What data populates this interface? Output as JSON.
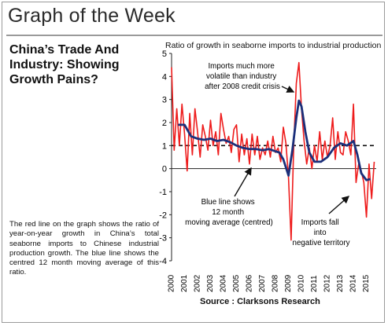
{
  "header": {
    "title": "Graph of the Week"
  },
  "headline": "China’s Trade And Industry: Showing Growth Pains?",
  "description": "The red line on the graph shows the ratio of year-on-year growth in China’s total seaborne imports to Chinese industrial production growth. The blue line shows the centred 12 month moving average of this ratio.",
  "source": "Source : Clarksons Research",
  "chart_data": {
    "type": "line",
    "title": "Ratio of growth in seaborne imports to industrial production",
    "xlabel": "",
    "ylabel": "",
    "ylim": [
      -4,
      5
    ],
    "yticks": [
      -4,
      -3,
      -2,
      -1,
      0,
      1,
      2,
      3,
      4,
      5
    ],
    "xticks": [
      "2000",
      "2001",
      "2002",
      "2003",
      "2004",
      "2005",
      "2006",
      "2007",
      "2008",
      "2009",
      "2010",
      "2011",
      "2012",
      "2013",
      "2014",
      "2015"
    ],
    "reference_line": {
      "y": 1,
      "style": "dashed"
    },
    "colors": {
      "monthly": "#ee1c1c",
      "moving_average": "#1b2f7a"
    },
    "series": [
      {
        "key": "monthly",
        "x": [
          2000.0,
          2000.2,
          2000.4,
          2000.6,
          2000.8,
          2001.0,
          2001.2,
          2001.4,
          2001.6,
          2001.8,
          2002.0,
          2002.2,
          2002.4,
          2002.6,
          2002.8,
          2003.0,
          2003.2,
          2003.4,
          2003.6,
          2003.8,
          2004.0,
          2004.2,
          2004.4,
          2004.6,
          2004.8,
          2005.0,
          2005.2,
          2005.4,
          2005.6,
          2005.8,
          2006.0,
          2006.2,
          2006.4,
          2006.6,
          2006.8,
          2007.0,
          2007.2,
          2007.4,
          2007.6,
          2007.8,
          2008.0,
          2008.2,
          2008.4,
          2008.6,
          2008.8,
          2009.0,
          2009.2,
          2009.4,
          2009.6,
          2009.8,
          2010.0,
          2010.2,
          2010.4,
          2010.6,
          2010.8,
          2011.0,
          2011.2,
          2011.4,
          2011.6,
          2011.8,
          2012.0,
          2012.2,
          2012.4,
          2012.6,
          2012.8,
          2013.0,
          2013.2,
          2013.4,
          2013.6,
          2013.8,
          2014.0,
          2014.2,
          2014.4,
          2014.6,
          2014.8,
          2015.0,
          2015.2,
          2015.4,
          2015.6
        ],
        "y": [
          4.4,
          0.8,
          2.6,
          1.0,
          2.8,
          1.5,
          -0.1,
          2.4,
          0.6,
          2.6,
          1.6,
          0.5,
          1.9,
          1.4,
          0.8,
          2.1,
          1.0,
          1.6,
          0.6,
          2.4,
          1.7,
          1.1,
          1.4,
          0.7,
          1.7,
          1.9,
          0.3,
          1.5,
          0.6,
          1.3,
          0.2,
          1.5,
          0.6,
          1.4,
          0.4,
          0.9,
          0.6,
          1.2,
          0.5,
          1.4,
          0.7,
          0.9,
          0.3,
          1.8,
          1.1,
          -0.4,
          -3.1,
          1.0,
          3.7,
          4.6,
          2.6,
          1.2,
          0.2,
          0.9,
          0.0,
          1.0,
          0.3,
          1.6,
          0.4,
          1.2,
          0.5,
          1.0,
          2.2,
          0.4,
          1.6,
          0.7,
          0.6,
          1.6,
          1.2,
          0.6,
          2.8,
          -0.6,
          0.2,
          -0.1,
          -0.6,
          -2.1,
          0.2,
          -1.3,
          0.3
        ]
      },
      {
        "key": "moving_average",
        "x": [
          2000.5,
          2001.0,
          2001.5,
          2002.0,
          2002.5,
          2003.0,
          2003.5,
          2004.0,
          2004.5,
          2005.0,
          2005.5,
          2006.0,
          2006.5,
          2007.0,
          2007.5,
          2008.0,
          2008.3,
          2008.6,
          2009.0,
          2009.3,
          2009.6,
          2009.8,
          2010.0,
          2010.3,
          2010.6,
          2011.0,
          2011.5,
          2012.0,
          2012.5,
          2013.0,
          2013.5,
          2014.0,
          2014.3,
          2014.6,
          2015.0,
          2015.3
        ],
        "y": [
          1.9,
          1.9,
          1.4,
          1.3,
          1.25,
          1.3,
          1.2,
          1.25,
          1.15,
          1.0,
          0.9,
          0.85,
          0.85,
          0.8,
          0.85,
          0.75,
          0.7,
          0.4,
          -0.3,
          0.8,
          2.2,
          2.95,
          2.7,
          1.6,
          0.7,
          0.3,
          0.3,
          0.5,
          0.9,
          1.1,
          1.0,
          1.2,
          0.6,
          -0.2,
          -0.5,
          -0.45
        ]
      }
    ],
    "annotations": [
      {
        "key": "crisis",
        "text": "Imports much more volatile than industry after 2008 credit crisis"
      },
      {
        "key": "blue",
        "text": "Blue line shows 12 month moving average (centred)"
      },
      {
        "key": "fall",
        "text": "Imports fall into negative territory"
      }
    ]
  }
}
